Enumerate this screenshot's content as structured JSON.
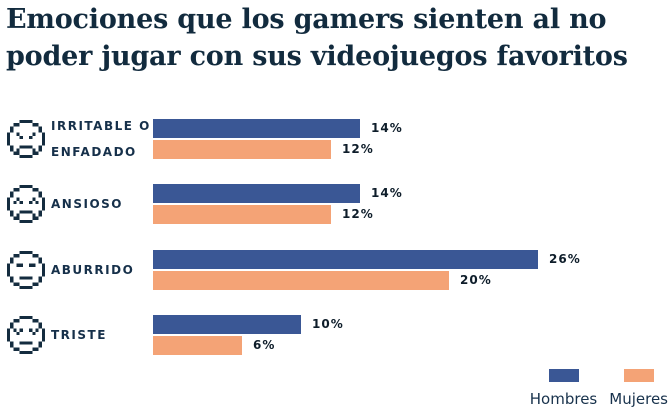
{
  "title": {
    "lines": [
      "Emociones que los gamers sienten al no",
      "poder jugar con sus videojuegos favoritos"
    ],
    "full": "Emociones que los gamers sienten al no poder jugar con sus videojuegos favoritos"
  },
  "colors": {
    "hombres": "#3A5795",
    "mujeres": "#F4A376",
    "title_text": "#122B3E",
    "category_text": "#16304A",
    "value_text": "#0E1D2A",
    "icon": "#142C3F",
    "background": "#FFFFFF"
  },
  "rows": [
    {
      "icon": "angry-face-icon",
      "label_lines": [
        "IRRITABLE O",
        "ENFADADO"
      ],
      "hombres_pct": 14,
      "hombres_label": "14%",
      "mujeres_pct": 12,
      "mujeres_label": "12%"
    },
    {
      "icon": "anxious-face-icon",
      "label_lines": [
        "ANSIOSO"
      ],
      "hombres_pct": 14,
      "hombres_label": "14%",
      "mujeres_pct": 12,
      "mujeres_label": "12%"
    },
    {
      "icon": "bored-face-icon",
      "label_lines": [
        "ABURRIDO"
      ],
      "hombres_pct": 26,
      "hombres_label": "26%",
      "mujeres_pct": 20,
      "mujeres_label": "20%"
    },
    {
      "icon": "sad-face-icon",
      "label_lines": [
        "TRISTE"
      ],
      "hombres_pct": 10,
      "hombres_label": "10%",
      "mujeres_pct": 6,
      "mujeres_label": "6%"
    }
  ],
  "legend": {
    "items": [
      {
        "label": "Hombres",
        "color": "#3A5795"
      },
      {
        "label": "Mujeres",
        "color": "#F4A376"
      }
    ]
  },
  "chart_data": {
    "type": "bar",
    "orientation": "horizontal",
    "title": "Emociones que los gamers sienten al no poder jugar con sus videojuegos favoritos",
    "categories": [
      "Irritable o enfadado",
      "Ansioso",
      "Aburrido",
      "Triste"
    ],
    "series": [
      {
        "name": "Hombres",
        "color": "#3A5795",
        "values": [
          14,
          14,
          26,
          10
        ]
      },
      {
        "name": "Mujeres",
        "color": "#F4A376",
        "values": [
          12,
          12,
          20,
          6
        ]
      }
    ],
    "value_unit": "%",
    "xlim": [
      0,
      26
    ],
    "grid": false,
    "axes_visible": false,
    "data_labels": true,
    "legend_position": "bottom-right"
  }
}
